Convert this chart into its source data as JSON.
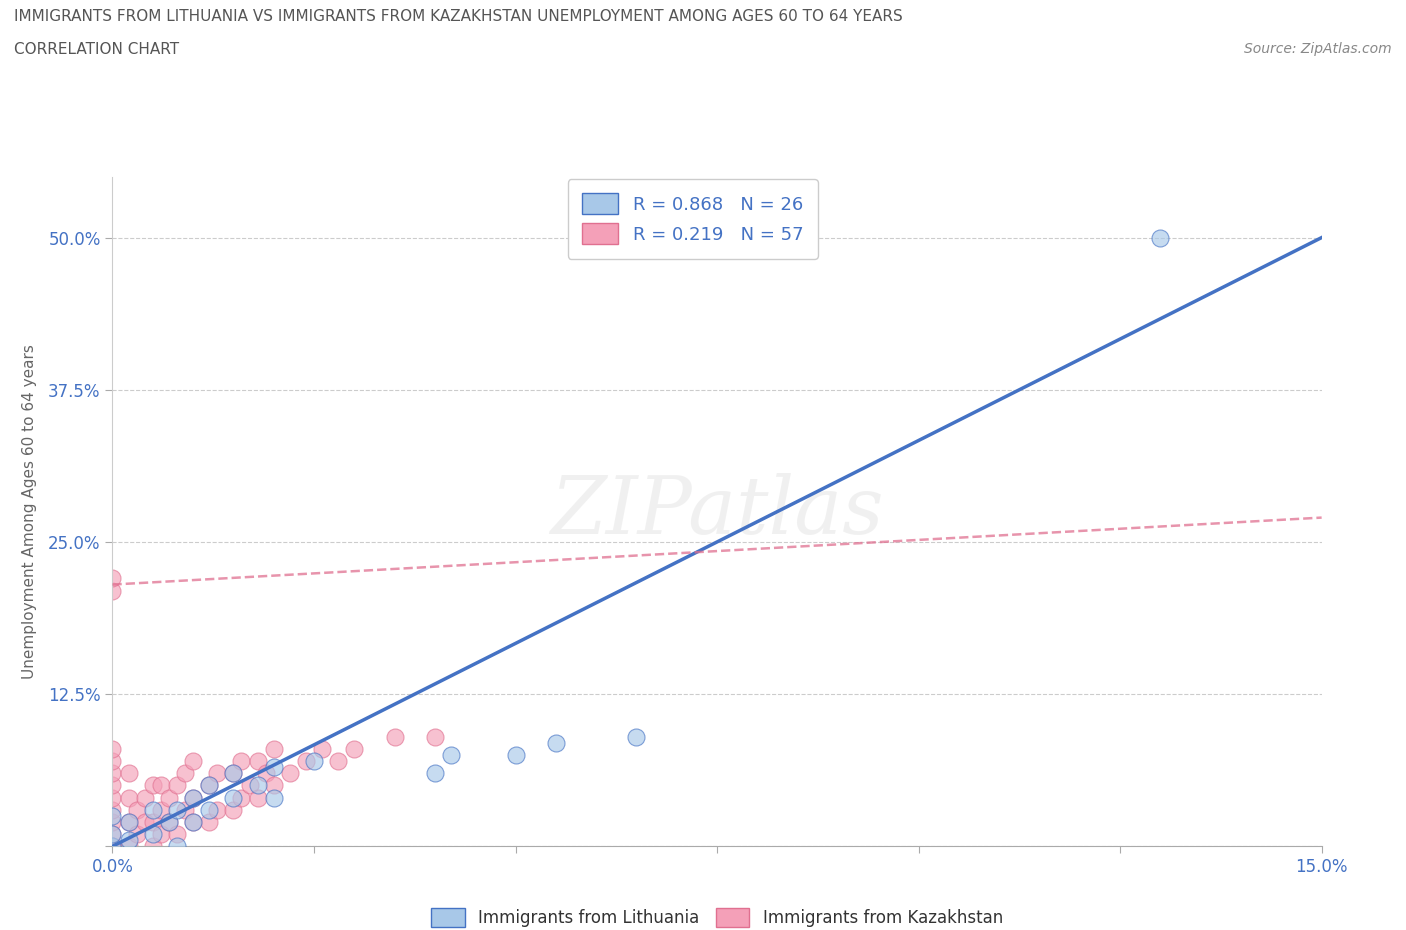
{
  "title_line1": "IMMIGRANTS FROM LITHUANIA VS IMMIGRANTS FROM KAZAKHSTAN UNEMPLOYMENT AMONG AGES 60 TO 64 YEARS",
  "title_line2": "CORRELATION CHART",
  "source_text": "Source: ZipAtlas.com",
  "ylabel": "Unemployment Among Ages 60 to 64 years",
  "xlim": [
    0.0,
    0.15
  ],
  "ylim": [
    0.0,
    0.55
  ],
  "xticks": [
    0.0,
    0.025,
    0.05,
    0.075,
    0.1,
    0.125,
    0.15
  ],
  "xtick_labels": [
    "0.0%",
    "",
    "",
    "",
    "",
    "",
    "15.0%"
  ],
  "yticks": [
    0.0,
    0.125,
    0.25,
    0.375,
    0.5
  ],
  "ytick_labels": [
    "",
    "12.5%",
    "25.0%",
    "37.5%",
    "50.0%"
  ],
  "lithuania_R": 0.868,
  "lithuania_N": 26,
  "kazakhstan_R": 0.219,
  "kazakhstan_N": 57,
  "lithuania_color": "#a8c8e8",
  "lithuania_line_color": "#4472c4",
  "kazakhstan_color": "#f4a0b8",
  "kazakhstan_line_color": "#e07090",
  "watermark": "ZIPatlas",
  "lit_line_x0": 0.0,
  "lit_line_y0": 0.0,
  "lit_line_x1": 0.15,
  "lit_line_y1": 0.5,
  "kaz_line_x0": 0.0,
  "kaz_line_y0": 0.215,
  "kaz_line_x1": 0.15,
  "kaz_line_y1": 0.27,
  "lithuania_scatter_x": [
    0.0,
    0.0,
    0.0,
    0.002,
    0.002,
    0.005,
    0.005,
    0.007,
    0.008,
    0.008,
    0.01,
    0.01,
    0.012,
    0.012,
    0.015,
    0.015,
    0.018,
    0.02,
    0.02,
    0.025,
    0.04,
    0.042,
    0.05,
    0.055,
    0.065,
    0.13
  ],
  "lithuania_scatter_y": [
    0.0,
    0.01,
    0.025,
    0.005,
    0.02,
    0.01,
    0.03,
    0.02,
    0.0,
    0.03,
    0.02,
    0.04,
    0.03,
    0.05,
    0.04,
    0.06,
    0.05,
    0.04,
    0.065,
    0.07,
    0.06,
    0.075,
    0.075,
    0.085,
    0.09,
    0.5
  ],
  "kazakhstan_scatter_x": [
    0.0,
    0.0,
    0.0,
    0.0,
    0.0,
    0.0,
    0.0,
    0.0,
    0.0,
    0.0,
    0.0,
    0.0,
    0.0,
    0.002,
    0.002,
    0.002,
    0.002,
    0.003,
    0.003,
    0.004,
    0.004,
    0.005,
    0.005,
    0.005,
    0.006,
    0.006,
    0.006,
    0.007,
    0.007,
    0.008,
    0.008,
    0.009,
    0.009,
    0.01,
    0.01,
    0.01,
    0.012,
    0.012,
    0.013,
    0.013,
    0.015,
    0.015,
    0.016,
    0.016,
    0.017,
    0.018,
    0.018,
    0.019,
    0.02,
    0.02,
    0.022,
    0.024,
    0.026,
    0.028,
    0.03,
    0.035,
    0.04
  ],
  "kazakhstan_scatter_y": [
    0.0,
    0.0,
    0.0,
    0.01,
    0.02,
    0.03,
    0.04,
    0.05,
    0.06,
    0.07,
    0.08,
    0.21,
    0.22,
    0.0,
    0.02,
    0.04,
    0.06,
    0.01,
    0.03,
    0.02,
    0.04,
    0.0,
    0.02,
    0.05,
    0.01,
    0.03,
    0.05,
    0.02,
    0.04,
    0.01,
    0.05,
    0.03,
    0.06,
    0.02,
    0.04,
    0.07,
    0.02,
    0.05,
    0.03,
    0.06,
    0.03,
    0.06,
    0.04,
    0.07,
    0.05,
    0.04,
    0.07,
    0.06,
    0.05,
    0.08,
    0.06,
    0.07,
    0.08,
    0.07,
    0.08,
    0.09,
    0.09
  ]
}
